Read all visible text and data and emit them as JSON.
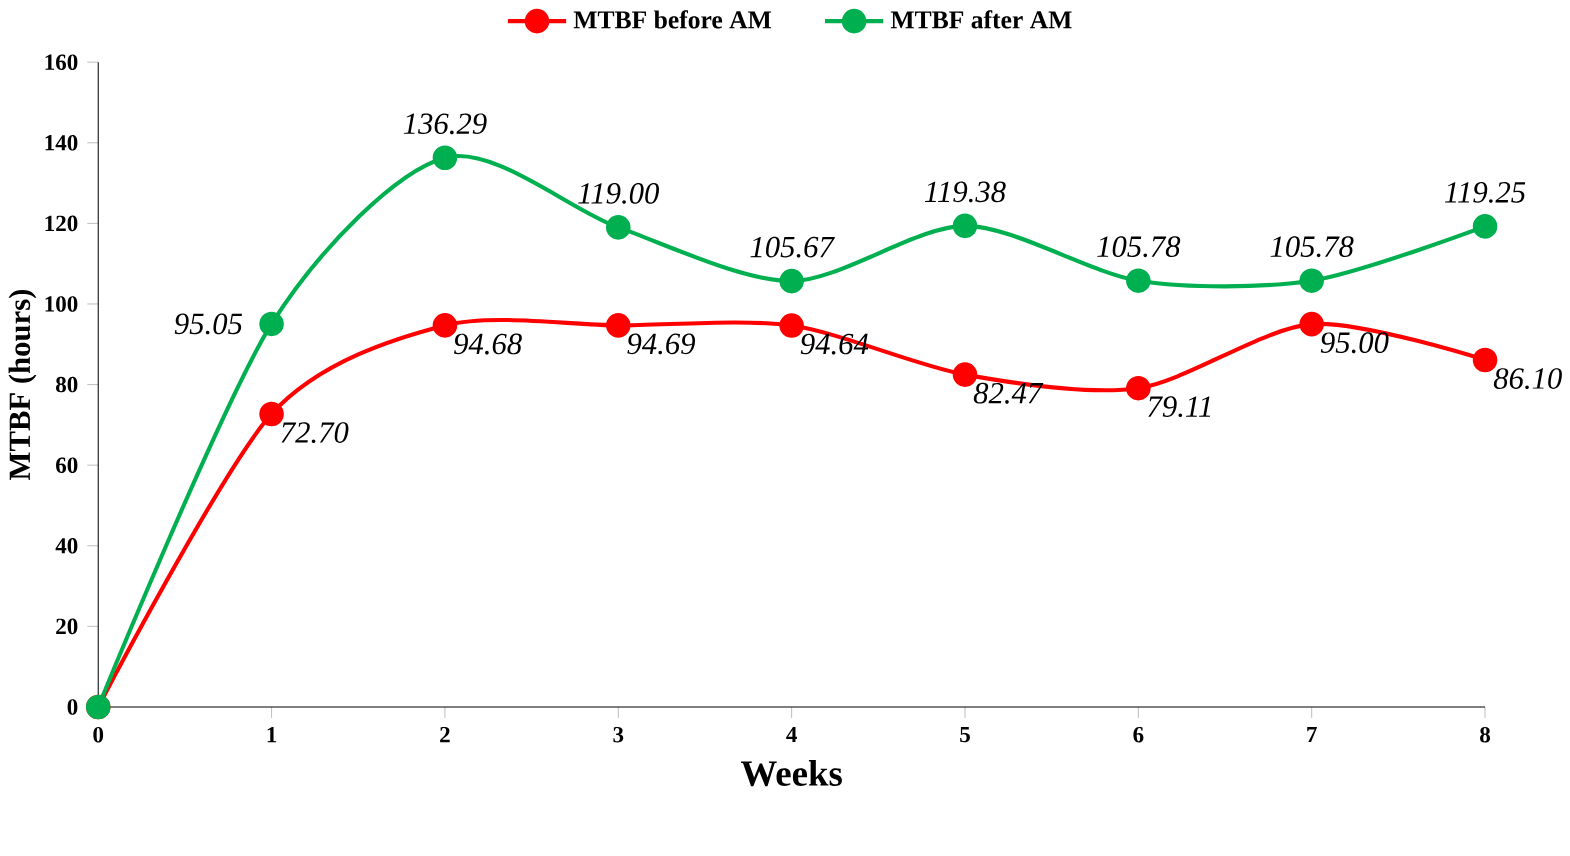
{
  "chart_data": {
    "type": "line",
    "xlabel": "Weeks",
    "ylabel": "MTBF (hours)",
    "x": [
      0,
      1,
      2,
      3,
      4,
      5,
      6,
      7,
      8
    ],
    "xlim": [
      0,
      8
    ],
    "xticks": [
      0,
      1,
      2,
      3,
      4,
      5,
      6,
      7,
      8
    ],
    "ylim": [
      0,
      160
    ],
    "yticks": [
      0,
      20,
      40,
      60,
      80,
      100,
      120,
      140,
      160
    ],
    "grid": false,
    "legend": "top",
    "marker": "circle",
    "line_style": "solid",
    "series": [
      {
        "name": "MTBF before AM",
        "color": "#ff0000",
        "values": [
          0,
          72.7,
          94.68,
          94.69,
          94.64,
          82.47,
          79.11,
          95.0,
          86.1
        ],
        "value_labels": [
          null,
          "72.70",
          "94.68",
          "94.69",
          "94.64",
          "82.47",
          "79.11",
          "95.00",
          "86.10"
        ]
      },
      {
        "name": "MTBF after AM",
        "color": "#00b050",
        "values": [
          0,
          95.05,
          136.29,
          119.0,
          105.67,
          119.38,
          105.78,
          105.78,
          119.25
        ],
        "value_labels": [
          null,
          "95.05",
          "136.29",
          "119.00",
          "105.67",
          "119.38",
          "105.78",
          "105.78",
          "119.25"
        ]
      }
    ]
  }
}
